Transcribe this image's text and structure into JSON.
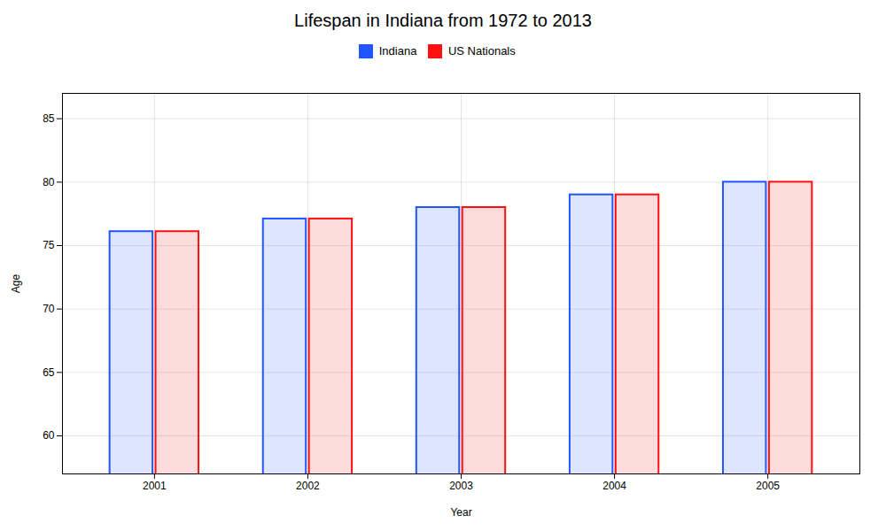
{
  "chart_data": {
    "type": "bar",
    "title": "Lifespan in Indiana from 1972 to 2013",
    "xlabel": "Year",
    "ylabel": "Age",
    "categories": [
      "2001",
      "2002",
      "2003",
      "2004",
      "2005"
    ],
    "series": [
      {
        "name": "Indiana",
        "color": "#2255ff",
        "values": [
          76.1,
          77.1,
          78.0,
          79.0,
          80.0
        ]
      },
      {
        "name": "US Nationals",
        "color": "#ff1111",
        "values": [
          76.1,
          77.1,
          78.0,
          79.0,
          80.0
        ]
      }
    ],
    "ylim": [
      57,
      87
    ],
    "yticks": [
      60,
      65,
      70,
      75,
      80,
      85
    ],
    "grid": true,
    "legend": "top"
  }
}
